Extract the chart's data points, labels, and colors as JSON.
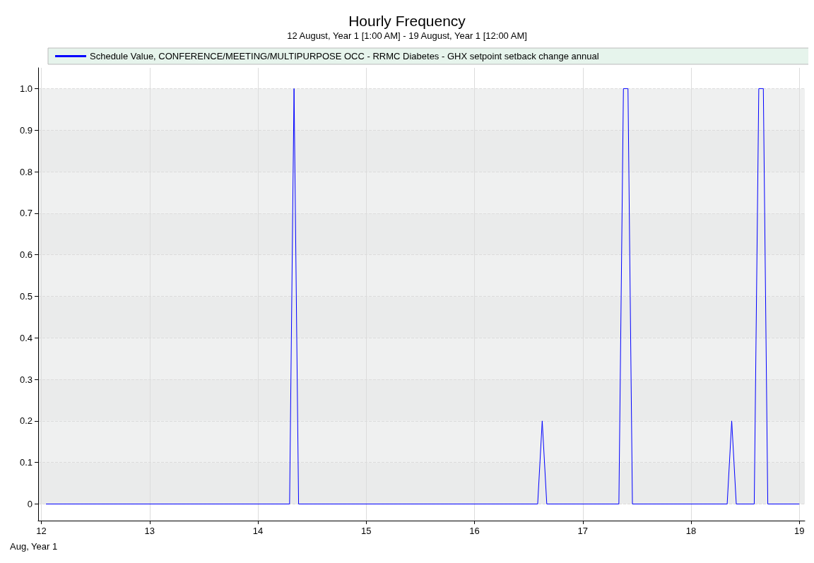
{
  "chart_data": {
    "type": "line",
    "title": "Hourly Frequency",
    "subtitle": "12 August, Year 1 [1:00 AM] - 19 August, Year 1 [12:00 AM]",
    "xlabel": "Aug, Year 1",
    "x": [
      12.042,
      14.292,
      14.333,
      14.375,
      16.583,
      16.625,
      16.667,
      17.333,
      17.375,
      17.417,
      17.458,
      18.333,
      18.375,
      18.417,
      18.583,
      18.625,
      18.667,
      18.708,
      19
    ],
    "series": [
      {
        "name": "Schedule Value, CONFERENCE/MEETING/MULTIPURPOSE OCC - RRMC Diabetes - GHX setpoint setback change annual",
        "color": "#0000ff",
        "values": [
          0,
          0,
          1,
          0,
          0,
          0.2,
          0,
          0,
          1,
          1,
          0,
          0,
          0.2,
          0,
          0,
          1,
          1,
          0,
          0
        ]
      }
    ],
    "xlim": [
      11.97,
      19.05
    ],
    "xticks": [
      12,
      13,
      14,
      15,
      16,
      17,
      18,
      19
    ],
    "ylim": [
      -0.04,
      1.05
    ],
    "yticks": [
      {
        "value": 0,
        "label": "0"
      },
      {
        "value": 0.1,
        "label": "0.1"
      },
      {
        "value": 0.2,
        "label": "0.2"
      },
      {
        "value": 0.3,
        "label": "0.3"
      },
      {
        "value": 0.4,
        "label": "0.4"
      },
      {
        "value": 0.5,
        "label": "0.5"
      },
      {
        "value": 0.6,
        "label": "0.6"
      },
      {
        "value": 0.7,
        "label": "0.7"
      },
      {
        "value": 0.8,
        "label": "0.8"
      },
      {
        "value": 0.9,
        "label": "0.9"
      },
      {
        "value": 1,
        "label": "1.0"
      }
    ],
    "grid": true,
    "legend": "top",
    "marker": "none",
    "line_style": "solid"
  }
}
